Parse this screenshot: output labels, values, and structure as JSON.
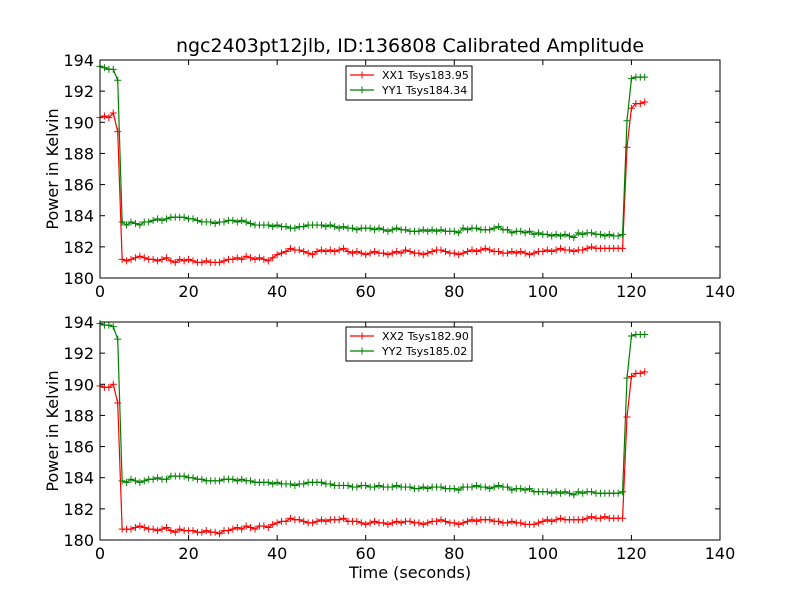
{
  "figure": {
    "title": "ngc2403pt12jlb, ID:136808 Calibrated Amplitude",
    "xlabel": "Time (seconds)"
  },
  "colors": {
    "xx": "#ff0000",
    "yy": "#008000",
    "axes": "#000000",
    "background": "#ffffff"
  },
  "chart_data": [
    {
      "type": "line",
      "xlabel": "",
      "ylabel": "Power in Kelvin",
      "xlim": [
        0,
        140
      ],
      "ylim": [
        180,
        194
      ],
      "xticks": [
        0,
        20,
        40,
        60,
        80,
        100,
        120,
        140
      ],
      "yticks": [
        180,
        182,
        184,
        186,
        188,
        190,
        192,
        194
      ],
      "grid": false,
      "legend": "top-center",
      "x": [
        0,
        1,
        2,
        3,
        4,
        5,
        6,
        7,
        8,
        9,
        10,
        11,
        12,
        13,
        14,
        15,
        16,
        17,
        18,
        19,
        20,
        21,
        22,
        23,
        24,
        25,
        26,
        27,
        28,
        29,
        30,
        31,
        32,
        33,
        34,
        35,
        36,
        37,
        38,
        39,
        40,
        41,
        42,
        43,
        44,
        45,
        46,
        47,
        48,
        49,
        50,
        51,
        52,
        53,
        54,
        55,
        56,
        57,
        58,
        59,
        60,
        61,
        62,
        63,
        64,
        65,
        66,
        67,
        68,
        69,
        70,
        71,
        72,
        73,
        74,
        75,
        76,
        77,
        78,
        79,
        80,
        81,
        82,
        83,
        84,
        85,
        86,
        87,
        88,
        89,
        90,
        91,
        92,
        93,
        94,
        95,
        96,
        97,
        98,
        99,
        100,
        101,
        102,
        103,
        104,
        105,
        106,
        107,
        108,
        109,
        110,
        111,
        112,
        113,
        114,
        115,
        116,
        117,
        118,
        119,
        120,
        121,
        122,
        123
      ],
      "series": [
        {
          "name": "XX1 Tsys183.95",
          "values": [
            190.3,
            190.4,
            190.3,
            190.6,
            189.4,
            181.2,
            181.1,
            181.2,
            181.3,
            181.4,
            181.3,
            181.2,
            181.2,
            181.1,
            181.2,
            181.3,
            181.1,
            181.0,
            181.2,
            181.1,
            181.2,
            181.1,
            181.0,
            181.0,
            181.1,
            181.0,
            181.0,
            181.0,
            181.1,
            181.2,
            181.2,
            181.3,
            181.2,
            181.4,
            181.3,
            181.2,
            181.3,
            181.2,
            181.1,
            181.3,
            181.5,
            181.6,
            181.7,
            181.9,
            181.8,
            181.8,
            181.7,
            181.6,
            181.5,
            181.7,
            181.8,
            181.7,
            181.8,
            181.7,
            181.8,
            181.9,
            181.7,
            181.6,
            181.7,
            181.6,
            181.5,
            181.6,
            181.7,
            181.6,
            181.6,
            181.5,
            181.6,
            181.7,
            181.6,
            181.8,
            181.7,
            181.6,
            181.6,
            181.5,
            181.6,
            181.7,
            181.8,
            181.8,
            181.7,
            181.6,
            181.6,
            181.5,
            181.6,
            181.7,
            181.8,
            181.7,
            181.8,
            181.9,
            181.8,
            181.7,
            181.7,
            181.6,
            181.6,
            181.7,
            181.6,
            181.7,
            181.6,
            181.5,
            181.6,
            181.7,
            181.7,
            181.8,
            181.7,
            181.8,
            181.9,
            181.8,
            181.8,
            181.7,
            181.8,
            181.8,
            181.9,
            182.0,
            181.9,
            181.9,
            181.9,
            181.9,
            181.9,
            181.9,
            181.9,
            188.4,
            190.9,
            191.2,
            191.2,
            191.3
          ]
        },
        {
          "name": "YY1 Tsys184.34",
          "values": [
            193.6,
            193.5,
            193.4,
            193.4,
            192.7,
            183.6,
            183.4,
            183.6,
            183.5,
            183.4,
            183.6,
            183.6,
            183.7,
            183.8,
            183.7,
            183.8,
            183.9,
            183.9,
            183.9,
            183.9,
            183.8,
            183.8,
            183.7,
            183.6,
            183.6,
            183.6,
            183.5,
            183.6,
            183.6,
            183.7,
            183.7,
            183.6,
            183.7,
            183.6,
            183.5,
            183.4,
            183.4,
            183.4,
            183.4,
            183.3,
            183.4,
            183.3,
            183.3,
            183.2,
            183.2,
            183.3,
            183.3,
            183.4,
            183.4,
            183.4,
            183.4,
            183.3,
            183.4,
            183.3,
            183.2,
            183.3,
            183.2,
            183.2,
            183.1,
            183.2,
            183.2,
            183.2,
            183.1,
            183.2,
            183.1,
            183.0,
            183.1,
            183.2,
            183.1,
            183.1,
            183.0,
            183.0,
            183.0,
            183.1,
            183.0,
            183.1,
            183.0,
            183.1,
            183.0,
            183.0,
            183.0,
            182.9,
            183.2,
            183.1,
            183.2,
            183.2,
            183.1,
            183.1,
            183.1,
            183.2,
            183.3,
            183.1,
            183.1,
            182.9,
            183.0,
            183.0,
            182.9,
            183.0,
            182.8,
            182.9,
            182.8,
            182.8,
            182.7,
            182.8,
            182.7,
            182.8,
            182.7,
            182.6,
            182.9,
            182.8,
            182.9,
            182.9,
            182.8,
            182.8,
            182.7,
            182.8,
            182.7,
            182.7,
            182.8,
            190.1,
            192.8,
            192.9,
            192.9,
            192.9
          ]
        }
      ]
    },
    {
      "type": "line",
      "xlabel": "Time (seconds)",
      "ylabel": "Power in Kelvin",
      "xlim": [
        0,
        140
      ],
      "ylim": [
        180,
        194
      ],
      "xticks": [
        0,
        20,
        40,
        60,
        80,
        100,
        120,
        140
      ],
      "yticks": [
        180,
        182,
        184,
        186,
        188,
        190,
        192,
        194
      ],
      "grid": false,
      "legend": "top-center",
      "x": [
        0,
        1,
        2,
        3,
        4,
        5,
        6,
        7,
        8,
        9,
        10,
        11,
        12,
        13,
        14,
        15,
        16,
        17,
        18,
        19,
        20,
        21,
        22,
        23,
        24,
        25,
        26,
        27,
        28,
        29,
        30,
        31,
        32,
        33,
        34,
        35,
        36,
        37,
        38,
        39,
        40,
        41,
        42,
        43,
        44,
        45,
        46,
        47,
        48,
        49,
        50,
        51,
        52,
        53,
        54,
        55,
        56,
        57,
        58,
        59,
        60,
        61,
        62,
        63,
        64,
        65,
        66,
        67,
        68,
        69,
        70,
        71,
        72,
        73,
        74,
        75,
        76,
        77,
        78,
        79,
        80,
        81,
        82,
        83,
        84,
        85,
        86,
        87,
        88,
        89,
        90,
        91,
        92,
        93,
        94,
        95,
        96,
        97,
        98,
        99,
        100,
        101,
        102,
        103,
        104,
        105,
        106,
        107,
        108,
        109,
        110,
        111,
        112,
        113,
        114,
        115,
        116,
        117,
        118,
        119,
        120,
        121,
        122,
        123
      ],
      "series": [
        {
          "name": "XX2 Tsys182.90",
          "values": [
            189.9,
            189.8,
            189.8,
            190.0,
            188.8,
            180.7,
            180.7,
            180.7,
            180.8,
            180.9,
            180.8,
            180.7,
            180.7,
            180.6,
            180.7,
            180.8,
            180.6,
            180.5,
            180.7,
            180.6,
            180.6,
            180.6,
            180.5,
            180.5,
            180.6,
            180.5,
            180.5,
            180.4,
            180.6,
            180.6,
            180.7,
            180.8,
            180.7,
            180.9,
            180.8,
            180.7,
            180.9,
            180.9,
            180.8,
            181.0,
            181.1,
            181.2,
            181.2,
            181.4,
            181.3,
            181.3,
            181.2,
            181.1,
            181.1,
            181.2,
            181.3,
            181.2,
            181.3,
            181.3,
            181.3,
            181.4,
            181.2,
            181.2,
            181.2,
            181.1,
            181.0,
            181.1,
            181.2,
            181.1,
            181.1,
            181.0,
            181.1,
            181.2,
            181.1,
            181.2,
            181.2,
            181.1,
            181.1,
            181.0,
            181.1,
            181.2,
            181.2,
            181.3,
            181.2,
            181.1,
            181.1,
            181.0,
            181.1,
            181.2,
            181.3,
            181.2,
            181.3,
            181.3,
            181.3,
            181.2,
            181.2,
            181.1,
            181.1,
            181.2,
            181.1,
            181.1,
            181.0,
            181.0,
            181.0,
            181.1,
            181.2,
            181.3,
            181.2,
            181.3,
            181.4,
            181.3,
            181.3,
            181.3,
            181.3,
            181.3,
            181.4,
            181.5,
            181.4,
            181.4,
            181.5,
            181.4,
            181.4,
            181.4,
            181.4,
            187.9,
            190.5,
            190.7,
            190.7,
            190.8
          ]
        },
        {
          "name": "YY2 Tsys185.02",
          "values": [
            193.9,
            193.8,
            193.8,
            193.7,
            192.9,
            183.8,
            183.7,
            183.9,
            183.8,
            183.7,
            183.8,
            183.9,
            183.9,
            184.0,
            183.9,
            183.9,
            184.1,
            184.1,
            184.1,
            184.1,
            184.0,
            184.0,
            183.9,
            183.9,
            183.8,
            183.8,
            183.8,
            183.8,
            183.9,
            183.9,
            183.9,
            183.8,
            183.9,
            183.8,
            183.8,
            183.7,
            183.7,
            183.7,
            183.7,
            183.6,
            183.7,
            183.6,
            183.6,
            183.6,
            183.5,
            183.6,
            183.6,
            183.7,
            183.7,
            183.7,
            183.7,
            183.6,
            183.6,
            183.5,
            183.5,
            183.5,
            183.5,
            183.4,
            183.4,
            183.5,
            183.5,
            183.4,
            183.4,
            183.5,
            183.4,
            183.4,
            183.4,
            183.5,
            183.4,
            183.4,
            183.4,
            183.3,
            183.3,
            183.4,
            183.3,
            183.4,
            183.4,
            183.4,
            183.3,
            183.3,
            183.3,
            183.2,
            183.4,
            183.4,
            183.4,
            183.5,
            183.4,
            183.4,
            183.3,
            183.4,
            183.5,
            183.4,
            183.4,
            183.2,
            183.3,
            183.3,
            183.2,
            183.3,
            183.1,
            183.1,
            183.1,
            183.1,
            183.0,
            183.1,
            183.0,
            183.1,
            183.0,
            182.9,
            183.1,
            183.0,
            183.1,
            183.1,
            183.0,
            183.0,
            183.0,
            183.0,
            183.0,
            183.0,
            183.1,
            190.4,
            193.1,
            193.2,
            193.2,
            193.2
          ]
        }
      ]
    }
  ]
}
